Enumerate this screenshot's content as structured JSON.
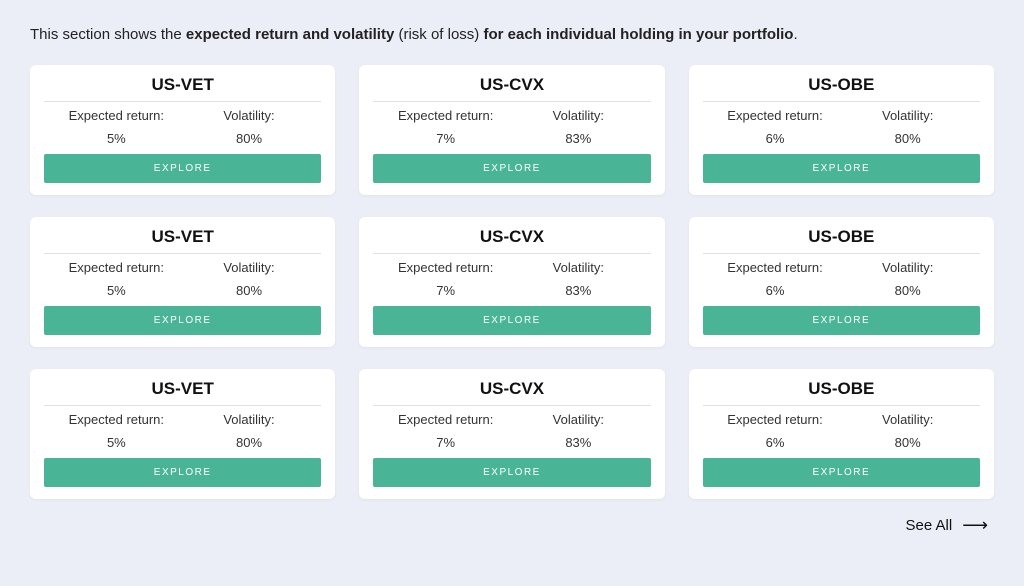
{
  "intro": {
    "prefix": "This section shows the ",
    "bold1": "expected return and volatility",
    "paren": " (risk of loss) ",
    "bold2": "for each individual holding in your portfolio",
    "suffix": "."
  },
  "labels": {
    "expected_return": "Expected return:",
    "volatility": "Volatility:",
    "explore": "EXPLORE",
    "see_all": "See All"
  },
  "colors": {
    "background": "#eceef7",
    "card_bg": "#ffffff",
    "button_bg": "#49b596",
    "button_text": "#ffffff",
    "text": "#222222",
    "divider": "#e3e3e3"
  },
  "holdings": [
    {
      "ticker": "US-VET",
      "expected_return": "5%",
      "volatility": "80%"
    },
    {
      "ticker": "US-CVX",
      "expected_return": "7%",
      "volatility": "83%"
    },
    {
      "ticker": "US-OBE",
      "expected_return": "6%",
      "volatility": "80%"
    },
    {
      "ticker": "US-VET",
      "expected_return": "5%",
      "volatility": "80%"
    },
    {
      "ticker": "US-CVX",
      "expected_return": "7%",
      "volatility": "83%"
    },
    {
      "ticker": "US-OBE",
      "expected_return": "6%",
      "volatility": "80%"
    },
    {
      "ticker": "US-VET",
      "expected_return": "5%",
      "volatility": "80%"
    },
    {
      "ticker": "US-CVX",
      "expected_return": "7%",
      "volatility": "83%"
    },
    {
      "ticker": "US-OBE",
      "expected_return": "6%",
      "volatility": "80%"
    }
  ]
}
